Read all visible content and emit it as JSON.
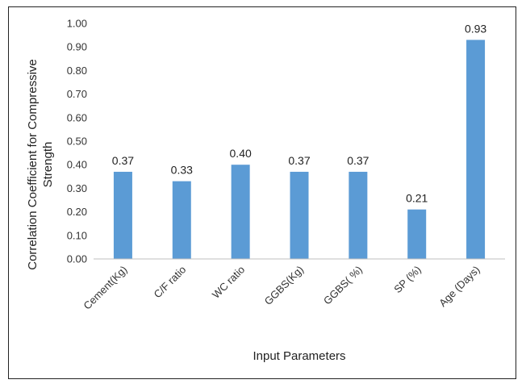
{
  "chart_data": {
    "type": "bar",
    "title": "",
    "xlabel": "Input Parameters",
    "ylabel": "Correlation Coefficient for Compressive Strength",
    "categories": [
      "Cement(Kg)",
      "C/F ratio",
      "WC ratio",
      "GGBS(Kg)",
      "GGBS( %)",
      "SP (%)",
      "Age (Days)"
    ],
    "values": [
      0.37,
      0.33,
      0.4,
      0.37,
      0.37,
      0.21,
      0.93
    ],
    "data_labels": [
      "0.37",
      "0.33",
      "0.40",
      "0.37",
      "0.37",
      "0.21",
      "0.93"
    ],
    "ylim": [
      0,
      1.0
    ],
    "yticks": [
      "0.00",
      "0.10",
      "0.20",
      "0.30",
      "0.40",
      "0.50",
      "0.60",
      "0.70",
      "0.80",
      "0.90",
      "1.00"
    ],
    "grid": false,
    "legend": "none",
    "bar_color": "#5b9bd5"
  }
}
